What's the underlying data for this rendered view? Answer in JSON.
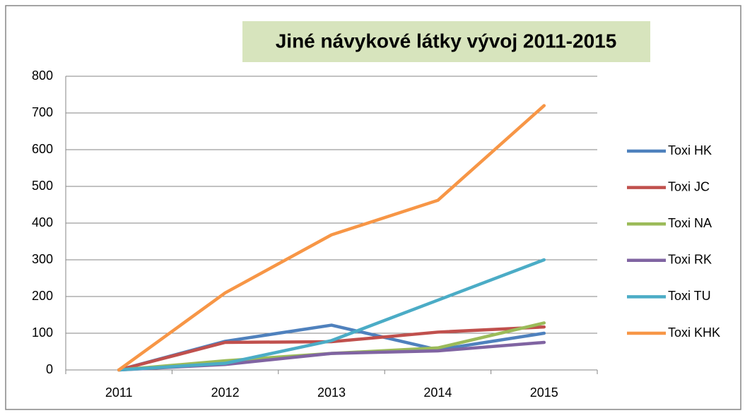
{
  "chart_data": {
    "type": "line",
    "title": "Jiné návykové látky vývoj 2011-2015",
    "categories": [
      "2011",
      "2012",
      "2013",
      "2014",
      "2015"
    ],
    "series": [
      {
        "name": "Toxi HK",
        "color": "#4f81bd",
        "values": [
          0,
          78,
          122,
          55,
          100
        ]
      },
      {
        "name": "Toxi JC",
        "color": "#c0504d",
        "values": [
          0,
          75,
          77,
          103,
          117
        ]
      },
      {
        "name": "Toxi NA",
        "color": "#9bbb59",
        "values": [
          0,
          25,
          45,
          60,
          128
        ]
      },
      {
        "name": "Toxi RK",
        "color": "#8064a2",
        "values": [
          0,
          15,
          45,
          52,
          75
        ]
      },
      {
        "name": "Toxi TU",
        "color": "#4bacc6",
        "values": [
          0,
          18,
          80,
          190,
          300
        ]
      },
      {
        "name": "Toxi KHK",
        "color": "#f79646",
        "values": [
          0,
          210,
          368,
          462,
          720
        ]
      }
    ],
    "ylim": [
      0,
      800
    ],
    "yticks": [
      0,
      100,
      200,
      300,
      400,
      500,
      600,
      700,
      800
    ],
    "grid": true,
    "legend": "right"
  }
}
